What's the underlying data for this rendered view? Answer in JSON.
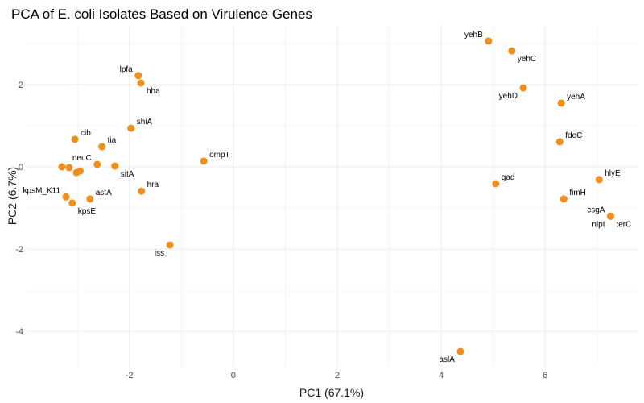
{
  "chart_data": {
    "type": "scatter",
    "title": "PCA of E. coli Isolates Based on Virulence Genes",
    "xlabel": "PC1 (67.1%)",
    "ylabel": "PC2 (6.7%)",
    "xlim": [
      -3.98,
      7.78
    ],
    "ylim": [
      -4.86,
      3.45
    ],
    "xticks": [
      -2,
      0,
      2,
      4,
      6
    ],
    "yticks": [
      -4,
      -2,
      0,
      2
    ],
    "xtick_labels": [
      "-2",
      "0",
      "2",
      "4",
      "6"
    ],
    "ytick_labels": [
      "-4",
      "-2",
      "0",
      "2"
    ],
    "grid": true,
    "legend": "none",
    "point_color": "#f28e1c",
    "points": [
      {
        "label": "yehB",
        "x": 4.91,
        "y": 3.06,
        "lx": -1,
        "ly": -1
      },
      {
        "label": "yehC",
        "x": 5.36,
        "y": 2.82,
        "lx": 1,
        "ly": 1
      },
      {
        "label": "yehD",
        "x": 5.58,
        "y": 1.92,
        "lx": -1,
        "ly": 1
      },
      {
        "label": "yehA",
        "x": 6.31,
        "y": 1.55,
        "lx": 1,
        "ly": -1
      },
      {
        "label": "fdeC",
        "x": 6.28,
        "y": 0.61,
        "lx": 1,
        "ly": -1
      },
      {
        "label": "gad",
        "x": 5.05,
        "y": -0.41,
        "lx": 1,
        "ly": -1
      },
      {
        "label": "hlyE",
        "x": 7.04,
        "y": -0.31,
        "lx": 1,
        "ly": -1
      },
      {
        "label": "fimH",
        "x": 6.36,
        "y": -0.78,
        "lx": 1,
        "ly": -1
      },
      {
        "label": "csgA",
        "x": 7.26,
        "y": -1.2,
        "lx": -1,
        "ly": -1
      },
      {
        "label": "nlpI",
        "x": 7.26,
        "y": -1.2,
        "lx": -1,
        "ly": 1
      },
      {
        "label": "terC",
        "x": 7.26,
        "y": -1.2,
        "lx": 1,
        "ly": 1
      },
      {
        "label": "aslA",
        "x": 4.37,
        "y": -4.49,
        "lx": -1,
        "ly": 1
      },
      {
        "label": "lpfa",
        "x": -1.83,
        "y": 2.22,
        "lx": -1,
        "ly": -1
      },
      {
        "label": "hha",
        "x": -1.78,
        "y": 2.04,
        "lx": 1,
        "ly": 1
      },
      {
        "label": "shiA",
        "x": -1.97,
        "y": 0.94,
        "lx": 1,
        "ly": -1
      },
      {
        "label": "ompT",
        "x": -0.57,
        "y": 0.14,
        "lx": 1,
        "ly": -1
      },
      {
        "label": "iss",
        "x": -1.22,
        "y": -1.9,
        "lx": -1,
        "ly": 1
      },
      {
        "label": "cib",
        "x": -3.05,
        "y": 0.67,
        "lx": 1,
        "ly": -1
      },
      {
        "label": "tia",
        "x": -2.53,
        "y": 0.49,
        "lx": 1,
        "ly": -1
      },
      {
        "label": "neuC",
        "x": -2.62,
        "y": 0.06,
        "lx": -1,
        "ly": -1
      },
      {
        "label": "sitA",
        "x": -2.28,
        "y": 0.02,
        "lx": 1,
        "ly": 1
      },
      {
        "label": "hra",
        "x": -1.77,
        "y": -0.59,
        "lx": 1,
        "ly": -1
      },
      {
        "label": "kpsM_K11",
        "x": -3.22,
        "y": -0.73,
        "lx": -1,
        "ly": -1
      },
      {
        "label": "kpsE",
        "x": -3.1,
        "y": -0.88,
        "lx": 1,
        "ly": 1
      },
      {
        "label": "astA",
        "x": -2.76,
        "y": -0.78,
        "lx": 1,
        "ly": -1
      },
      {
        "label": "",
        "x": -3.3,
        "y": 0.0,
        "lx": 0,
        "ly": 0
      },
      {
        "label": "",
        "x": -3.16,
        "y": -0.02,
        "lx": 0,
        "ly": 0
      },
      {
        "label": "",
        "x": -3.02,
        "y": -0.14,
        "lx": 0,
        "ly": 0
      },
      {
        "label": "",
        "x": -2.95,
        "y": -0.1,
        "lx": 0,
        "ly": 0
      }
    ]
  }
}
